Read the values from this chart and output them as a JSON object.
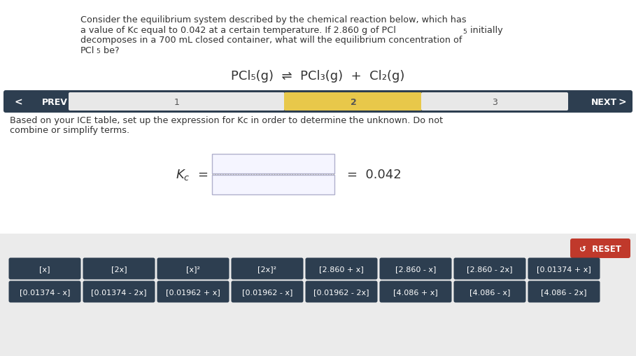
{
  "bg_color": "#ebebeb",
  "white_bg": "#ffffff",
  "nav_bg": "#2d3e50",
  "nav_highlight": "#e8c84a",
  "reset_bg": "#c0392b",
  "reset_label": "RESET",
  "button_bg": "#2d3e50",
  "button_text_color": "#ffffff",
  "buttons_row1": [
    "[x]",
    "[2x]",
    "[x]²",
    "[2x]²",
    "[2.860 + x]",
    "[2.860 - x]",
    "[2.860 - 2x]",
    "[0.01374 + x]"
  ],
  "buttons_row2": [
    "[0.01374 - x]",
    "[0.01374 - 2x]",
    "[0.01962 + x]",
    "[0.01962 - x]",
    "[0.01962 - 2x]",
    "[4.086 + x]",
    "[4.086 - x]",
    "[4.086 - 2x]"
  ],
  "title_line1": "Consider the equilibrium system described by the chemical reaction below, which has",
  "title_line2a": "a value of Kc equal to 0.042 at a certain temperature. If 2.860 g of PCl",
  "title_line2b": "5",
  "title_line2c": " initially",
  "title_line3": "decomposes in a 700 mL closed container, what will the equilibrium concentration of",
  "title_line4a": "PCl",
  "title_line4b": "5",
  "title_line4c": " be?",
  "inst_line1": "Based on your ICE table, set up the expression for Kc in order to determine the unknown. Do not",
  "inst_line2": "combine or simplify terms.",
  "text_color": "#333333",
  "nav_text_light": "#cccccc",
  "nav_text_dark": "#555555"
}
